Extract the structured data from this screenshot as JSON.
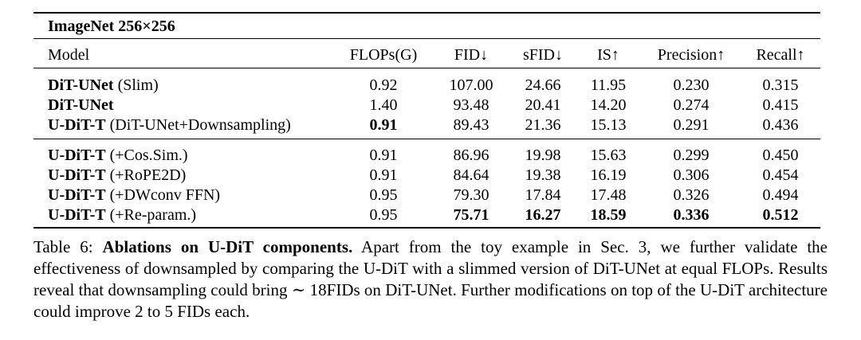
{
  "table": {
    "section_title": "ImageNet 256×256",
    "headers": [
      "Model",
      "FLOPs(G)",
      "FID↓",
      "sFID↓",
      "IS↑",
      "Precision↑",
      "Recall↑"
    ],
    "group1": [
      {
        "name": "DiT-UNet",
        "suffix": " (Slim)",
        "flops": "0.92",
        "fid": "107.00",
        "sfid": "24.66",
        "is": "11.95",
        "precision": "0.230",
        "recall": "0.315"
      },
      {
        "name": "DiT-UNet",
        "suffix": "",
        "flops": "1.40",
        "fid": "93.48",
        "sfid": "20.41",
        "is": "14.20",
        "precision": "0.274",
        "recall": "0.415"
      },
      {
        "name": "U-DiT-T",
        "suffix": " (DiT-UNet+Downsampling)",
        "flops": "0.91",
        "fid": "89.43",
        "sfid": "21.36",
        "is": "15.13",
        "precision": "0.291",
        "recall": "0.436"
      }
    ],
    "group2": [
      {
        "name": "U-DiT-T",
        "suffix": " (+Cos.Sim.)",
        "flops": "0.91",
        "fid": "86.96",
        "sfid": "19.98",
        "is": "15.63",
        "precision": "0.299",
        "recall": "0.450"
      },
      {
        "name": "U-DiT-T",
        "suffix": " (+RoPE2D)",
        "flops": "0.91",
        "fid": "84.64",
        "sfid": "19.38",
        "is": "16.19",
        "precision": "0.306",
        "recall": "0.454"
      },
      {
        "name": "U-DiT-T",
        "suffix": " (+DWconv FFN)",
        "flops": "0.95",
        "fid": "79.30",
        "sfid": "17.84",
        "is": "17.48",
        "precision": "0.326",
        "recall": "0.494"
      },
      {
        "name": "U-DiT-T",
        "suffix": " (+Re-param.)",
        "flops": "0.95",
        "fid": "75.71",
        "sfid": "16.27",
        "is": "18.59",
        "precision": "0.336",
        "recall": "0.512"
      }
    ]
  },
  "caption": {
    "label": "Table 6: ",
    "bold_text": "Ablations on U-DiT components.",
    "text": " Apart from the toy example in Sec. 3, we further validate the effectiveness of downsampled by comparing the U-DiT with a slimmed version of DiT-UNet at equal FLOPs. Results reveal that downsampling could bring ∼ 18FIDs on DiT-UNet. Further modifications on top of the U-DiT architecture could improve 2 to 5 FIDs each."
  }
}
